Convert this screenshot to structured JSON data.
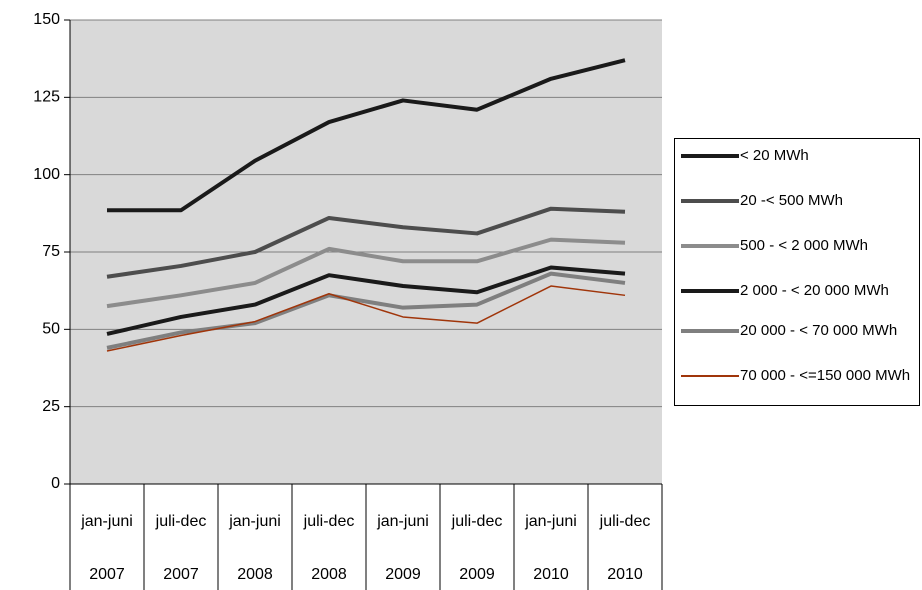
{
  "chart_data": {
    "type": "line",
    "categories": [
      "jan-juni",
      "juli-dec",
      "jan-juni",
      "juli-dec",
      "jan-juni",
      "juli-dec",
      "jan-juni",
      "juli-dec"
    ],
    "years": [
      "2007",
      "2007",
      "2008",
      "2008",
      "2009",
      "2009",
      "2010",
      "2010"
    ],
    "series": [
      {
        "name": "< 20 MWh",
        "color": "#1a1a1a",
        "values": [
          88.5,
          88.5,
          104.5,
          117,
          124,
          121,
          131,
          137
        ]
      },
      {
        "name": "20 -< 500 MWh",
        "color": "#4d4d4d",
        "values": [
          67,
          70.5,
          75,
          86,
          83,
          81,
          89,
          88
        ]
      },
      {
        "name": "500 - < 2 000 MWh",
        "color": "#8c8c8c",
        "values": [
          57.5,
          61,
          65,
          76,
          72,
          72,
          79,
          78
        ]
      },
      {
        "name": "2 000 - < 20 000 MWh",
        "color": "#1a1a1a",
        "values": [
          48.5,
          54,
          58,
          67.5,
          64,
          62,
          70,
          68
        ]
      },
      {
        "name": "20 000 - < 70 000 MWh",
        "color": "#7f7f7f",
        "values": [
          44,
          49,
          52,
          61,
          57,
          58,
          68,
          65
        ]
      },
      {
        "name": "70 000 - <=150 000 MWh",
        "color": "#a0350a",
        "values": [
          43,
          48,
          52.5,
          61.5,
          54,
          52,
          64,
          61
        ]
      }
    ],
    "line_widths": [
      4,
      4,
      4,
      4,
      4,
      1.5
    ],
    "ylim": [
      0,
      150
    ],
    "yticks": [
      0,
      25,
      50,
      75,
      100,
      125,
      150
    ],
    "grid": true,
    "legend": "right"
  }
}
